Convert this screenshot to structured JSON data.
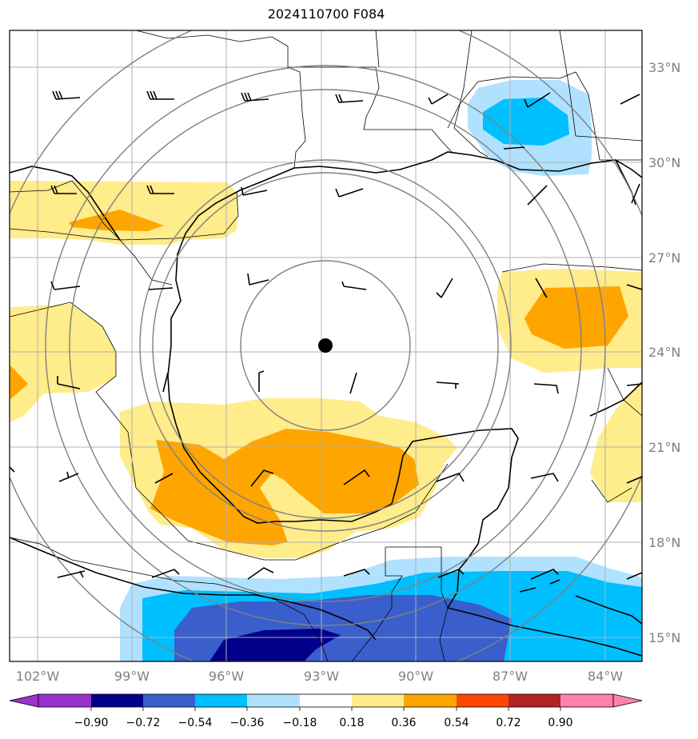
{
  "title": "2024110700 F084",
  "axes": {
    "lat_labels": [
      "33°N",
      "30°N",
      "27°N",
      "24°N",
      "21°N",
      "18°N",
      "15°N"
    ],
    "lon_labels": [
      "102°W",
      "99°W",
      "96°W",
      "93°W",
      "90°W",
      "87°W",
      "84°W"
    ]
  },
  "colorbar": {
    "tick_labels": [
      "−0.90",
      "−0.72",
      "−0.54",
      "−0.36",
      "−0.18",
      "0.18",
      "0.36",
      "0.54",
      "0.72",
      "0.90"
    ],
    "colors": [
      "#9a32cd",
      "#00008b",
      "#3a5fcd",
      "#00bfff",
      "#b0e2ff",
      "#ffffff",
      "#ffec8b",
      "#ffa500",
      "#ff4500",
      "#b22222",
      "#ff82ab"
    ]
  },
  "storm_center": {
    "lat": 24.2,
    "lon": -92.9
  },
  "range_rings_deg": [
    3,
    6,
    9,
    12,
    15
  ],
  "colors": {
    "grid": "#b0b0b0",
    "ring": "#808080",
    "coast": "#000000"
  }
}
